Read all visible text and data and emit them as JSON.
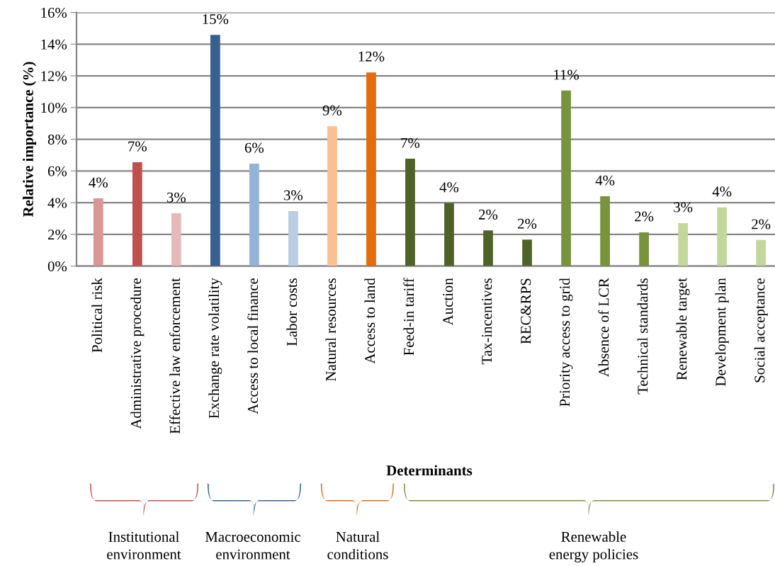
{
  "chart_data": {
    "type": "bar",
    "categories": [
      "Political risk",
      "Administrative procedure",
      "Effective law enforcement",
      "Exchange rate volatility",
      "Access to local finance",
      "Labor costs",
      "Natural resources",
      "Access to land",
      "Feed-in tariff",
      "Auction",
      "Tax-incentives",
      "REC&RPS",
      "Priority access to grid",
      "Absence of LCR",
      "Technical standards",
      "Renewable target",
      "Development plan",
      "Social acceptance"
    ],
    "values": [
      4.27,
      6.55,
      3.33,
      14.58,
      6.46,
      3.47,
      8.82,
      12.22,
      6.77,
      3.97,
      2.25,
      1.67,
      11.07,
      4.4,
      2.13,
      2.71,
      3.7,
      1.64
    ],
    "value_labels": [
      "4%",
      "7%",
      "3%",
      "15%",
      "6%",
      "3%",
      "9%",
      "12%",
      "7%",
      "4%",
      "2%",
      "2%",
      "11%",
      "4%",
      "2%",
      "3%",
      "4%",
      "2%"
    ],
    "colors": [
      "#d99694",
      "#c0504d",
      "#e6b9b8",
      "#366092",
      "#95b3d7",
      "#b9cde5",
      "#fac090",
      "#e46c0a",
      "#4f6228",
      "#4f6228",
      "#4f6228",
      "#4f6228",
      "#77933c",
      "#77933c",
      "#77933c",
      "#c3d69b",
      "#c3d69b",
      "#c3d69b"
    ],
    "xlabel": "Determinants",
    "ylabel": "Relative importance (%)",
    "ylim": [
      0,
      16
    ],
    "yticks": [
      {
        "value": 0,
        "label": "0%"
      },
      {
        "value": 2,
        "label": "2%"
      },
      {
        "value": 4,
        "label": "4%"
      },
      {
        "value": 6,
        "label": "6%"
      },
      {
        "value": 8,
        "label": "8%"
      },
      {
        "value": 10,
        "label": "10%"
      },
      {
        "value": 12,
        "label": "12%"
      },
      {
        "value": 14,
        "label": "14%"
      },
      {
        "value": 16,
        "label": "16%"
      }
    ],
    "grid": "y",
    "annotations": [
      "Institutional\nenvironment",
      "Macroeconomic\nenvironment",
      "Natural\nconditions",
      "Renewable\nenergy policies"
    ]
  }
}
